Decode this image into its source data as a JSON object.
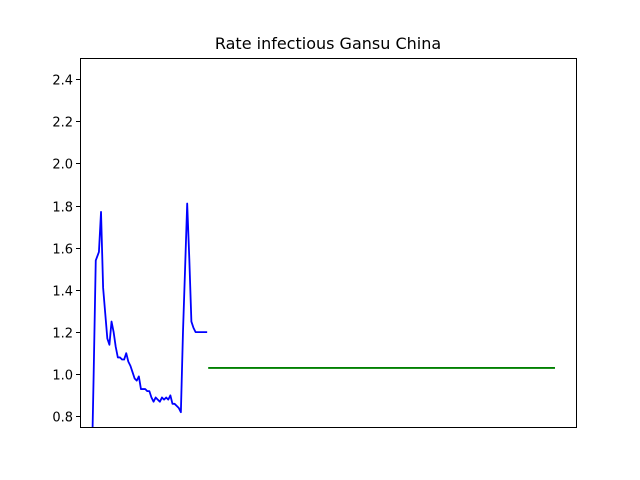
{
  "chart_data": {
    "type": "line",
    "title": "Rate infectious Gansu China",
    "xlabel": "",
    "ylabel": "",
    "ylim": [
      0.75,
      2.5
    ],
    "xlim": [
      -12,
      460
    ],
    "x_ticks_shown": false,
    "y_ticks": [
      0.8,
      1.0,
      1.2,
      1.4,
      1.6,
      1.8,
      2.0,
      2.2,
      2.4
    ],
    "y_tick_labels": [
      "0.8",
      "1.0",
      "1.2",
      "1.4",
      "1.6",
      "1.8",
      "2.0",
      "2.2",
      "2.4"
    ],
    "grid": false,
    "series": [
      {
        "color": "#0000ff",
        "x": [
          0,
          1,
          3,
          6,
          8,
          10,
          12,
          14,
          16,
          18,
          20,
          22,
          24,
          26,
          28,
          30,
          32,
          34,
          36,
          38,
          40,
          42,
          44,
          46,
          48,
          50,
          52,
          54,
          56,
          58,
          60,
          62,
          64,
          66,
          68,
          70,
          72,
          74,
          76,
          78,
          80,
          82,
          84,
          86,
          88,
          90,
          92,
          94,
          96,
          98,
          100,
          101,
          103,
          105,
          107,
          109
        ],
        "y": [
          0.75,
          1.0,
          1.54,
          1.58,
          1.77,
          1.41,
          1.29,
          1.17,
          1.14,
          1.25,
          1.2,
          1.13,
          1.08,
          1.08,
          1.07,
          1.07,
          1.1,
          1.06,
          1.04,
          1.01,
          0.98,
          0.97,
          0.99,
          0.93,
          0.93,
          0.93,
          0.92,
          0.92,
          0.89,
          0.87,
          0.89,
          0.88,
          0.87,
          0.89,
          0.88,
          0.89,
          0.88,
          0.9,
          0.86,
          0.86,
          0.85,
          0.84,
          0.82,
          1.2,
          1.5,
          1.81,
          1.55,
          1.25,
          1.22,
          1.2,
          1.2,
          1.2,
          1.2,
          1.2,
          1.2,
          1.2
        ]
      },
      {
        "color": "#008000",
        "x": [
          110,
          440
        ],
        "y": [
          1.03,
          1.03
        ]
      }
    ]
  }
}
